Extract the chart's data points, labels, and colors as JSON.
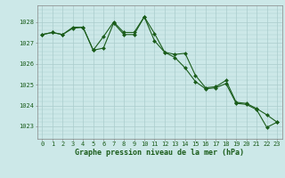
{
  "bg_color": "#cce8e8",
  "grid_color": "#aacccc",
  "line_color": "#1a5c1a",
  "marker_color": "#1a5c1a",
  "xlabel": "Graphe pression niveau de la mer (hPa)",
  "xlabel_fontsize": 6.0,
  "ytick_labels": [
    "1023",
    "1024",
    "1025",
    "1026",
    "1027",
    "1028"
  ],
  "ylim": [
    1022.4,
    1028.8
  ],
  "xlim": [
    -0.5,
    23.5
  ],
  "series1": [
    1027.4,
    1027.5,
    1027.4,
    1027.7,
    1027.75,
    1026.65,
    1026.75,
    1027.95,
    1027.4,
    1027.4,
    1028.25,
    1027.1,
    1026.55,
    1026.3,
    1025.8,
    1025.15,
    1024.8,
    1024.85,
    1025.05,
    1024.1,
    1024.05,
    1023.8,
    1022.95,
    1023.2
  ],
  "series2": [
    1027.4,
    1027.5,
    1027.4,
    1027.75,
    1027.75,
    1026.65,
    1027.3,
    1028.0,
    1027.5,
    1027.5,
    1028.25,
    1027.45,
    1026.55,
    1026.45,
    1026.5,
    1025.45,
    1024.85,
    1024.9,
    1025.2,
    1024.15,
    1024.1,
    1023.85,
    1023.55,
    1023.2
  ],
  "tick_fontsize": 5.0,
  "tick_color": "#1a5c1a",
  "spine_color": "#888888",
  "figsize": [
    3.2,
    2.0
  ],
  "dpi": 100
}
